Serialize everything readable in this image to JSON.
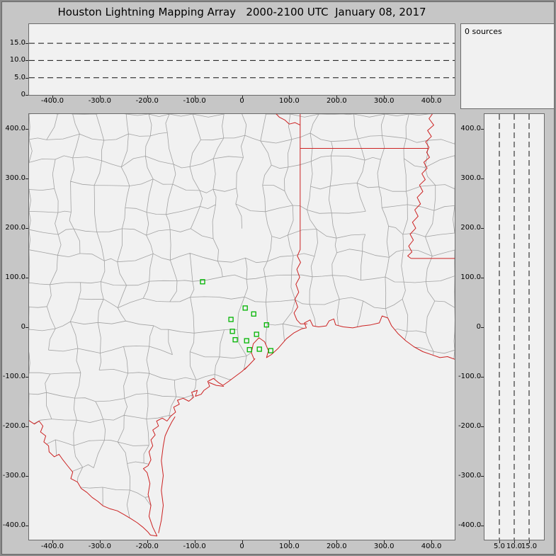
{
  "title": "Houston Lightning Mapping Array   2000-2100 UTC  January 08, 2017",
  "sources_label": "0 sources",
  "colors": {
    "window_bg": "#c6c6c6",
    "panel_bg": "#f1f1f1",
    "panel_border": "#6b6b6b",
    "county_line": "#a2a2a2",
    "state_border": "#cc2222",
    "station_marker": "#00b400",
    "dashed_line": "#111111",
    "text": "#000000"
  },
  "axes": {
    "ew": {
      "values": [
        -400,
        -300,
        -200,
        -100,
        0,
        100,
        200,
        300,
        400
      ],
      "labels": [
        "-400.0",
        "-300.0",
        "-200.0",
        "-100.0",
        "0",
        "100.0",
        "200.0",
        "300.0",
        "400.0"
      ],
      "range": [
        -450,
        450
      ]
    },
    "ns": {
      "values": [
        400,
        300,
        200,
        100,
        0,
        -100,
        -200,
        -300,
        -400
      ],
      "labels": [
        "400.0",
        "300.0",
        "200.0",
        "100.0",
        "0",
        "-100.0",
        "-200.0",
        "-300.0",
        "-400.0"
      ],
      "range": [
        -430,
        430
      ]
    },
    "alt_top": {
      "values": [
        15,
        10,
        5,
        0
      ],
      "labels": [
        "15.0",
        "10.0",
        "5.0",
        "0"
      ],
      "dashed": [
        5,
        10,
        15
      ],
      "range": [
        0,
        20.6
      ]
    },
    "alt_right": {
      "values": [
        5,
        10,
        15
      ],
      "labels": [
        "5.0",
        "10.0",
        "15.0"
      ],
      "dashed": [
        5,
        10,
        15
      ],
      "range": [
        0,
        20
      ]
    }
  },
  "stations_km": [
    [
      -83,
      91
    ],
    [
      7,
      38
    ],
    [
      25,
      26
    ],
    [
      -23,
      15
    ],
    [
      -20,
      -9
    ],
    [
      -14,
      -26
    ],
    [
      10,
      -28
    ],
    [
      31,
      -15
    ],
    [
      52,
      4
    ],
    [
      16,
      -46
    ],
    [
      37,
      -45
    ],
    [
      61,
      -48
    ]
  ],
  "chart_data": [
    {
      "type": "scatter",
      "name": "top-panel-altitude-vs-east-west",
      "xlim": [
        -450,
        450
      ],
      "ylim": [
        0,
        20.6
      ],
      "x_ticks": [
        -400,
        -300,
        -200,
        -100,
        0,
        100,
        200,
        300,
        400
      ],
      "y_ticks": [
        0,
        5,
        10,
        15
      ],
      "reference_lines_y": [
        5,
        10,
        15
      ],
      "grid": "dashed horizontal reference lines only",
      "series": [
        {
          "name": "lightning sources",
          "points": []
        }
      ],
      "n_points": 0
    },
    {
      "type": "scatter",
      "name": "main-panel-plan-view-map",
      "xlim": [
        -450,
        450
      ],
      "ylim": [
        -430,
        430
      ],
      "x_ticks": [
        -400,
        -300,
        -200,
        -100,
        0,
        100,
        200,
        300,
        400
      ],
      "y_ticks": [
        -400,
        -300,
        -200,
        -100,
        0,
        100,
        200,
        300,
        400
      ],
      "map_layers": [
        "county boundaries (gray)",
        "state borders / coastline / rivers (red)"
      ],
      "series": [
        {
          "name": "LMA stations",
          "marker": "open green square",
          "points": [
            [
              -83,
              91
            ],
            [
              7,
              38
            ],
            [
              25,
              26
            ],
            [
              -23,
              15
            ],
            [
              -20,
              -9
            ],
            [
              -14,
              -26
            ],
            [
              10,
              -28
            ],
            [
              31,
              -15
            ],
            [
              52,
              4
            ],
            [
              16,
              -46
            ],
            [
              37,
              -45
            ],
            [
              61,
              -48
            ]
          ]
        },
        {
          "name": "lightning sources",
          "points": []
        }
      ],
      "n_points": 0
    },
    {
      "type": "scatter",
      "name": "right-panel-altitude-vs-north-south",
      "xlim": [
        0,
        20
      ],
      "ylim": [
        -430,
        430
      ],
      "x_ticks": [
        5,
        10,
        15
      ],
      "reference_lines_x": [
        5,
        10,
        15
      ],
      "series": [
        {
          "name": "lightning sources",
          "points": []
        }
      ],
      "n_points": 0
    }
  ]
}
